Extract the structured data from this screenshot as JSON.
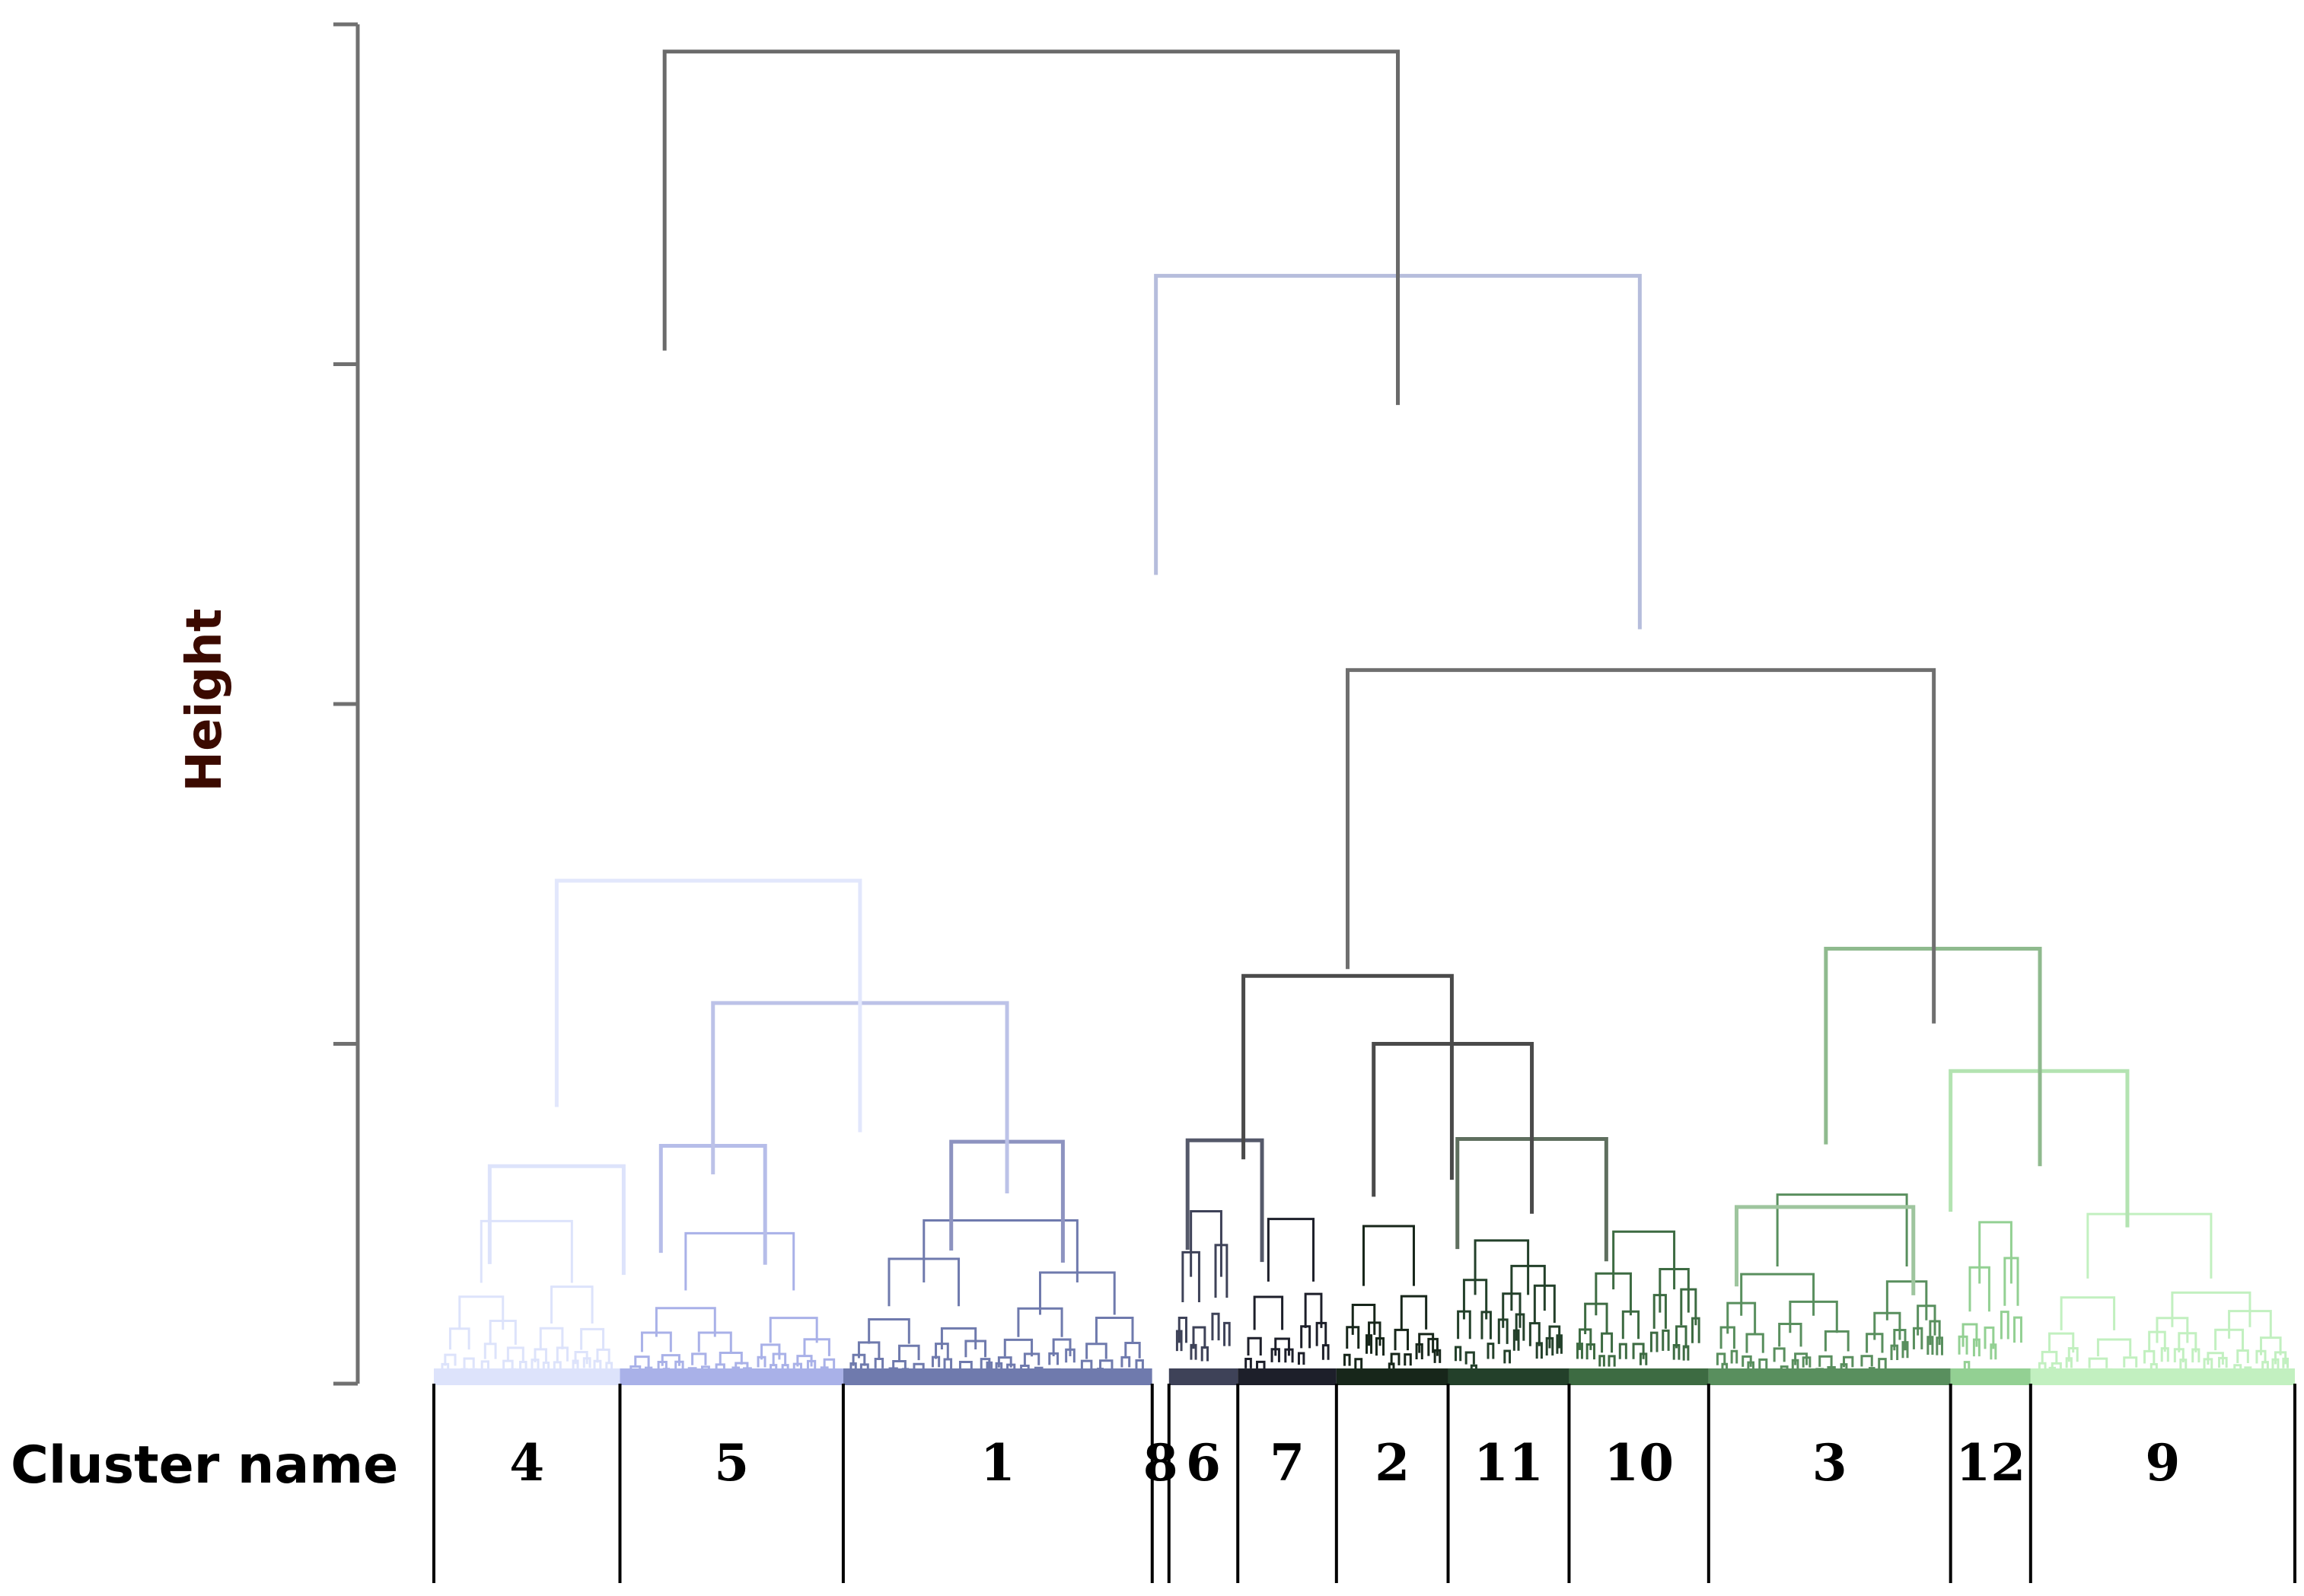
{
  "chart_data": {
    "type": "dendrogram",
    "ylabel": "Height",
    "row_label": "Cluster name",
    "y_ticks": 5,
    "clusters": [
      {
        "name": "4",
        "start": 0.0,
        "end": 10.0,
        "color": "#dde3fb"
      },
      {
        "name": "5",
        "start": 10.0,
        "end": 22.0,
        "color": "#a9b1e8"
      },
      {
        "name": "1",
        "start": 22.0,
        "end": 38.6,
        "color": "#6f7aad"
      },
      {
        "name": "8",
        "start": 38.6,
        "end": 39.5,
        "color": "#ffffff"
      },
      {
        "name": "6",
        "start": 39.5,
        "end": 43.2,
        "color": "#3e4258"
      },
      {
        "name": "7",
        "start": 43.2,
        "end": 48.5,
        "color": "#1d1f2a"
      },
      {
        "name": "2",
        "start": 48.5,
        "end": 54.5,
        "color": "#17261a"
      },
      {
        "name": "11",
        "start": 54.5,
        "end": 61.0,
        "color": "#23402a"
      },
      {
        "name": "10",
        "start": 61.0,
        "end": 68.5,
        "color": "#3d6b42"
      },
      {
        "name": "3",
        "start": 68.5,
        "end": 81.5,
        "color": "#598f5e"
      },
      {
        "name": "12",
        "start": 81.5,
        "end": 85.8,
        "color": "#93d093"
      },
      {
        "name": "9",
        "start": 85.8,
        "end": 100.0,
        "color": "#c2f0c0"
      }
    ],
    "merges": [
      {
        "id": "c4",
        "left": 3.0,
        "right": 10.2,
        "h": 16.0,
        "color": "#dde3fb"
      },
      {
        "id": "c5",
        "left": 12.2,
        "right": 17.8,
        "h": 17.5,
        "color": "#b6bde9"
      },
      {
        "id": "c1",
        "left": 27.8,
        "right": 33.8,
        "h": 17.8,
        "color": "#8d93c0"
      },
      {
        "id": "c51",
        "left": 15.0,
        "right": 30.8,
        "h": 28.0,
        "color": "#bcc2e8"
      },
      {
        "id": "c451",
        "left": 6.6,
        "right": 22.9,
        "h": 37.0,
        "color": "#e2e7fc"
      },
      {
        "id": "c67",
        "left": 40.5,
        "right": 44.5,
        "h": 17.9,
        "color": "#55596a"
      },
      {
        "id": "c1110",
        "left": 55.0,
        "right": 63.0,
        "h": 18.0,
        "color": "#5f6f5f"
      },
      {
        "id": "c2x",
        "left": 50.5,
        "right": 59.0,
        "h": 25.0,
        "color": "#4a4a4a"
      },
      {
        "id": "c672",
        "left": 43.5,
        "right": 54.7,
        "h": 30.0,
        "color": "#4a4a4a"
      },
      {
        "id": "c3",
        "left": 70.0,
        "right": 79.5,
        "h": 13.0,
        "color": "#9ec59e"
      },
      {
        "id": "c129",
        "left": 81.5,
        "right": 91.0,
        "h": 23.0,
        "color": "#b3e3b1"
      },
      {
        "id": "c3129",
        "left": 74.8,
        "right": 86.3,
        "h": 32.0,
        "color": "#8fba8e"
      },
      {
        "id": "cmid",
        "left": 49.1,
        "right": 80.6,
        "h": 52.5,
        "color": "#6f6f6f"
      },
      {
        "id": "cbig",
        "left": 38.8,
        "right": 64.8,
        "h": 81.5,
        "color": "#b6bddc"
      },
      {
        "id": "croot",
        "left": 12.4,
        "right": 51.8,
        "h": 98.0,
        "color": "#6a6a6a"
      }
    ]
  }
}
